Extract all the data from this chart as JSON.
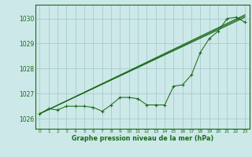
{
  "title": "Graphe pression niveau de la mer (hPa)",
  "background_color": "#cce8e8",
  "grid_color": "#aacccc",
  "line_color": "#1a6b1a",
  "xlim": [
    -0.5,
    23.5
  ],
  "ylim": [
    1025.6,
    1030.55
  ],
  "yticks": [
    1026,
    1027,
    1028,
    1029,
    1030
  ],
  "xticks": [
    0,
    1,
    2,
    3,
    4,
    5,
    6,
    7,
    8,
    9,
    10,
    11,
    12,
    13,
    14,
    15,
    16,
    17,
    18,
    19,
    20,
    21,
    22,
    23
  ],
  "x": [
    0,
    1,
    2,
    3,
    4,
    5,
    6,
    7,
    8,
    9,
    10,
    11,
    12,
    13,
    14,
    15,
    16,
    17,
    18,
    19,
    20,
    21,
    22,
    23
  ],
  "line1": [
    1026.2,
    1026.4,
    1026.35,
    1026.5,
    1026.5,
    1026.5,
    1026.45,
    1026.3,
    1026.55,
    1026.85,
    1026.85,
    1026.8,
    1026.55,
    1026.55,
    1026.55,
    1027.3,
    1027.35,
    1027.75,
    1028.65,
    1029.2,
    1029.5,
    1030.0,
    1030.05,
    1029.85
  ],
  "trend1_x": [
    0,
    23
  ],
  "trend1_y": [
    1026.2,
    1030.05
  ],
  "trend2_x": [
    0,
    23
  ],
  "trend2_y": [
    1026.2,
    1030.1
  ],
  "trend3_x": [
    0,
    23
  ],
  "trend3_y": [
    1026.2,
    1030.15
  ]
}
